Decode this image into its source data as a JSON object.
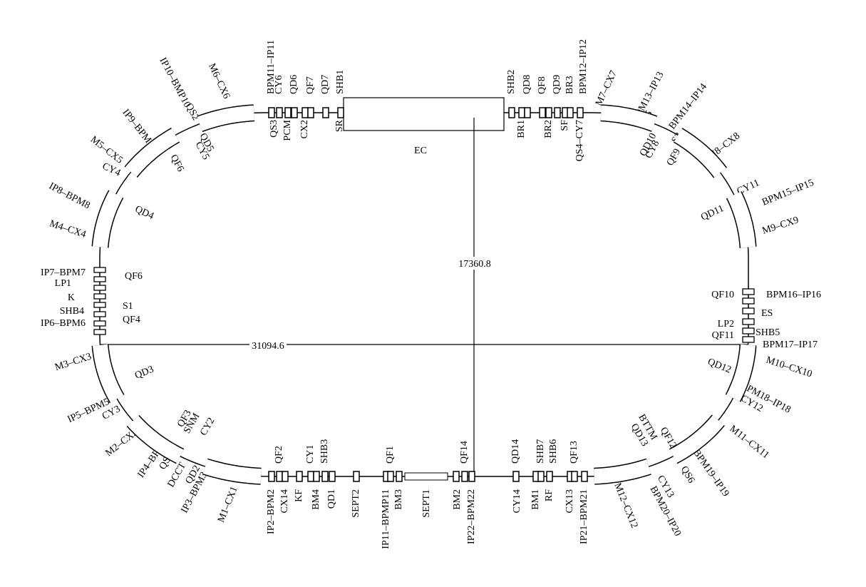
{
  "labels": [
    "BPM11–IP11",
    "CY6",
    "QD6",
    "QF7",
    "QD7",
    "SHB1",
    "SHB2",
    "QD8",
    "QF8",
    "QD9",
    "BR3",
    "BPM12–IP12",
    "QS3",
    "PCM",
    "CX2",
    "SR",
    "BR1",
    "BR2",
    "SF",
    "QS4–CY7",
    "EC",
    "QF2",
    "CY1",
    "SHB3",
    "QF1",
    "QF14",
    "QD14",
    "SHB7",
    "SHB6",
    "QF13",
    "IP2–BPM2",
    "CX14",
    "KF",
    "BM4",
    "QD1",
    "SEPT2",
    "IP11–BPMP11",
    "BM3",
    "SEPT1",
    "BM2",
    "IP22–BPM22",
    "CY14",
    "BM1",
    "RF",
    "CX13",
    "IP21–BPM21",
    "IP7–BPM7",
    "LP1",
    "K",
    "SHB4",
    "IP6–BPM6",
    "QF6",
    "S1",
    "QF4",
    "QF10",
    "BPM16–IP16",
    "ES",
    "LP2",
    "QF11",
    "SHB5",
    "BPM17–IP17",
    "M6–CX6",
    "IP10–BMP10",
    "QS2",
    "IP9–BPM9",
    "S2",
    "M5–CX5",
    "IP8–BPM8",
    "CY4",
    "M4–CX4",
    "QD5",
    "CY5",
    "QF6",
    "QD4",
    "M3–CX3",
    "IP5–BPM5",
    "CY3",
    "M2–CX2",
    "IP4–BPM4",
    "QS1",
    "DCCT",
    "QD2",
    "IP3–BPM3",
    "M1–CX1",
    "QD3",
    "QF3",
    "SNM",
    "CY2",
    "M7–CX7",
    "BPM13–IP13",
    "QS5",
    "BPM14–IP14",
    "S3",
    "M8–CX8",
    "CY11",
    "BPM15–IP15",
    "M9–CX9",
    "QD10",
    "CY8",
    "QF9",
    "QD11",
    "M10–CX10",
    "BPM18–IP18",
    "CY12",
    "M11–CX11",
    "BPM19–IP19",
    "QS6",
    "CY13",
    "BPM20–IP20",
    "M12–CX12",
    "QD12",
    "QF12",
    "BTTM",
    "QD13"
  ],
  "dimensions": {
    "height": "17360.8",
    "width": "31094.6"
  }
}
